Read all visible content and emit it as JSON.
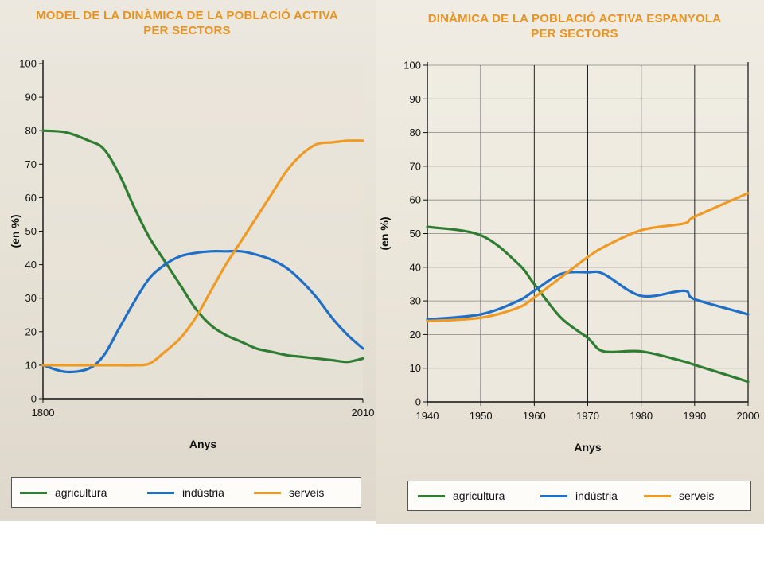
{
  "colors": {
    "agricultura": "#2e7d32",
    "industria": "#1f6fc6",
    "serveis": "#ee9a25"
  },
  "chart_data": [
    {
      "type": "line",
      "title": "MODEL DE LA DINÀMICA DE LA POBLACIÓ ACTIVA PER SECTORS",
      "title_lines": [
        "MODEL DE LA DINÀMICA DE LA POBLACIÓ ACTIVA",
        "PER SECTORS"
      ],
      "xlabel": "Anys",
      "ylabel": "(en %)",
      "xlim": [
        1800,
        2010
      ],
      "x_ticks": [
        "1800",
        "2010"
      ],
      "ylim": [
        0,
        100
      ],
      "y_ticks": [
        "0",
        "10",
        "20",
        "30",
        "40",
        "50",
        "60",
        "70",
        "80",
        "90",
        "100"
      ],
      "grid": false,
      "legend": "bottom",
      "x": [
        1800,
        1815,
        1830,
        1840,
        1850,
        1860,
        1870,
        1880,
        1890,
        1900,
        1910,
        1920,
        1930,
        1940,
        1950,
        1960,
        1970,
        1980,
        1990,
        2000,
        2010
      ],
      "series": [
        {
          "name": "agricultura",
          "values": [
            80,
            79.5,
            77,
            74.5,
            67,
            57,
            48,
            41,
            34,
            27,
            22,
            19,
            17,
            15,
            14,
            13,
            12.5,
            12,
            11.5,
            11,
            12
          ]
        },
        {
          "name": "indústria",
          "values": [
            10,
            8,
            9,
            13,
            21,
            29,
            36,
            40,
            42.5,
            43.5,
            44,
            44,
            44,
            43,
            41.5,
            39,
            35,
            30,
            24,
            19,
            15
          ]
        },
        {
          "name": "serveis",
          "values": [
            10,
            10,
            10,
            10,
            10,
            10,
            10.5,
            14,
            18,
            24,
            32,
            40,
            47,
            54,
            61,
            68,
            73,
            76,
            76.5,
            77,
            77
          ]
        }
      ]
    },
    {
      "type": "line",
      "title": "DINÀMICA DE LA POBLACIÓ ACTIVA ESPANYOLA PER SECTORS",
      "title_lines": [
        "DINÀMICA DE LA POBLACIÓ ACTIVA ESPANYOLA",
        "PER SECTORS"
      ],
      "xlabel": "Anys",
      "ylabel": "(en %)",
      "xlim": [
        1940,
        2000
      ],
      "x_ticks": [
        "1940",
        "1950",
        "1960",
        "1970",
        "1980",
        "1990",
        "2000"
      ],
      "ylim": [
        0,
        100
      ],
      "y_ticks": [
        "0",
        "10",
        "20",
        "30",
        "40",
        "50",
        "60",
        "70",
        "80",
        "90",
        "100"
      ],
      "grid": true,
      "legend": "bottom",
      "x": [
        1940,
        1950,
        1957,
        1960,
        1965,
        1970,
        1973,
        1980,
        1988,
        1990,
        2000
      ],
      "series": [
        {
          "name": "agricultura",
          "values": [
            52,
            49.5,
            41,
            35,
            25,
            19,
            15,
            15,
            12,
            11,
            6
          ]
        },
        {
          "name": "indústria",
          "values": [
            24.5,
            26,
            30,
            33,
            38,
            38.5,
            38,
            31.5,
            33,
            30.5,
            26
          ]
        },
        {
          "name": "serveis",
          "values": [
            24,
            25,
            28,
            31,
            37,
            43,
            46,
            51,
            53,
            55,
            62
          ]
        }
      ]
    }
  ],
  "legend": {
    "items": [
      "agricultura",
      "indústria",
      "serveis"
    ]
  }
}
